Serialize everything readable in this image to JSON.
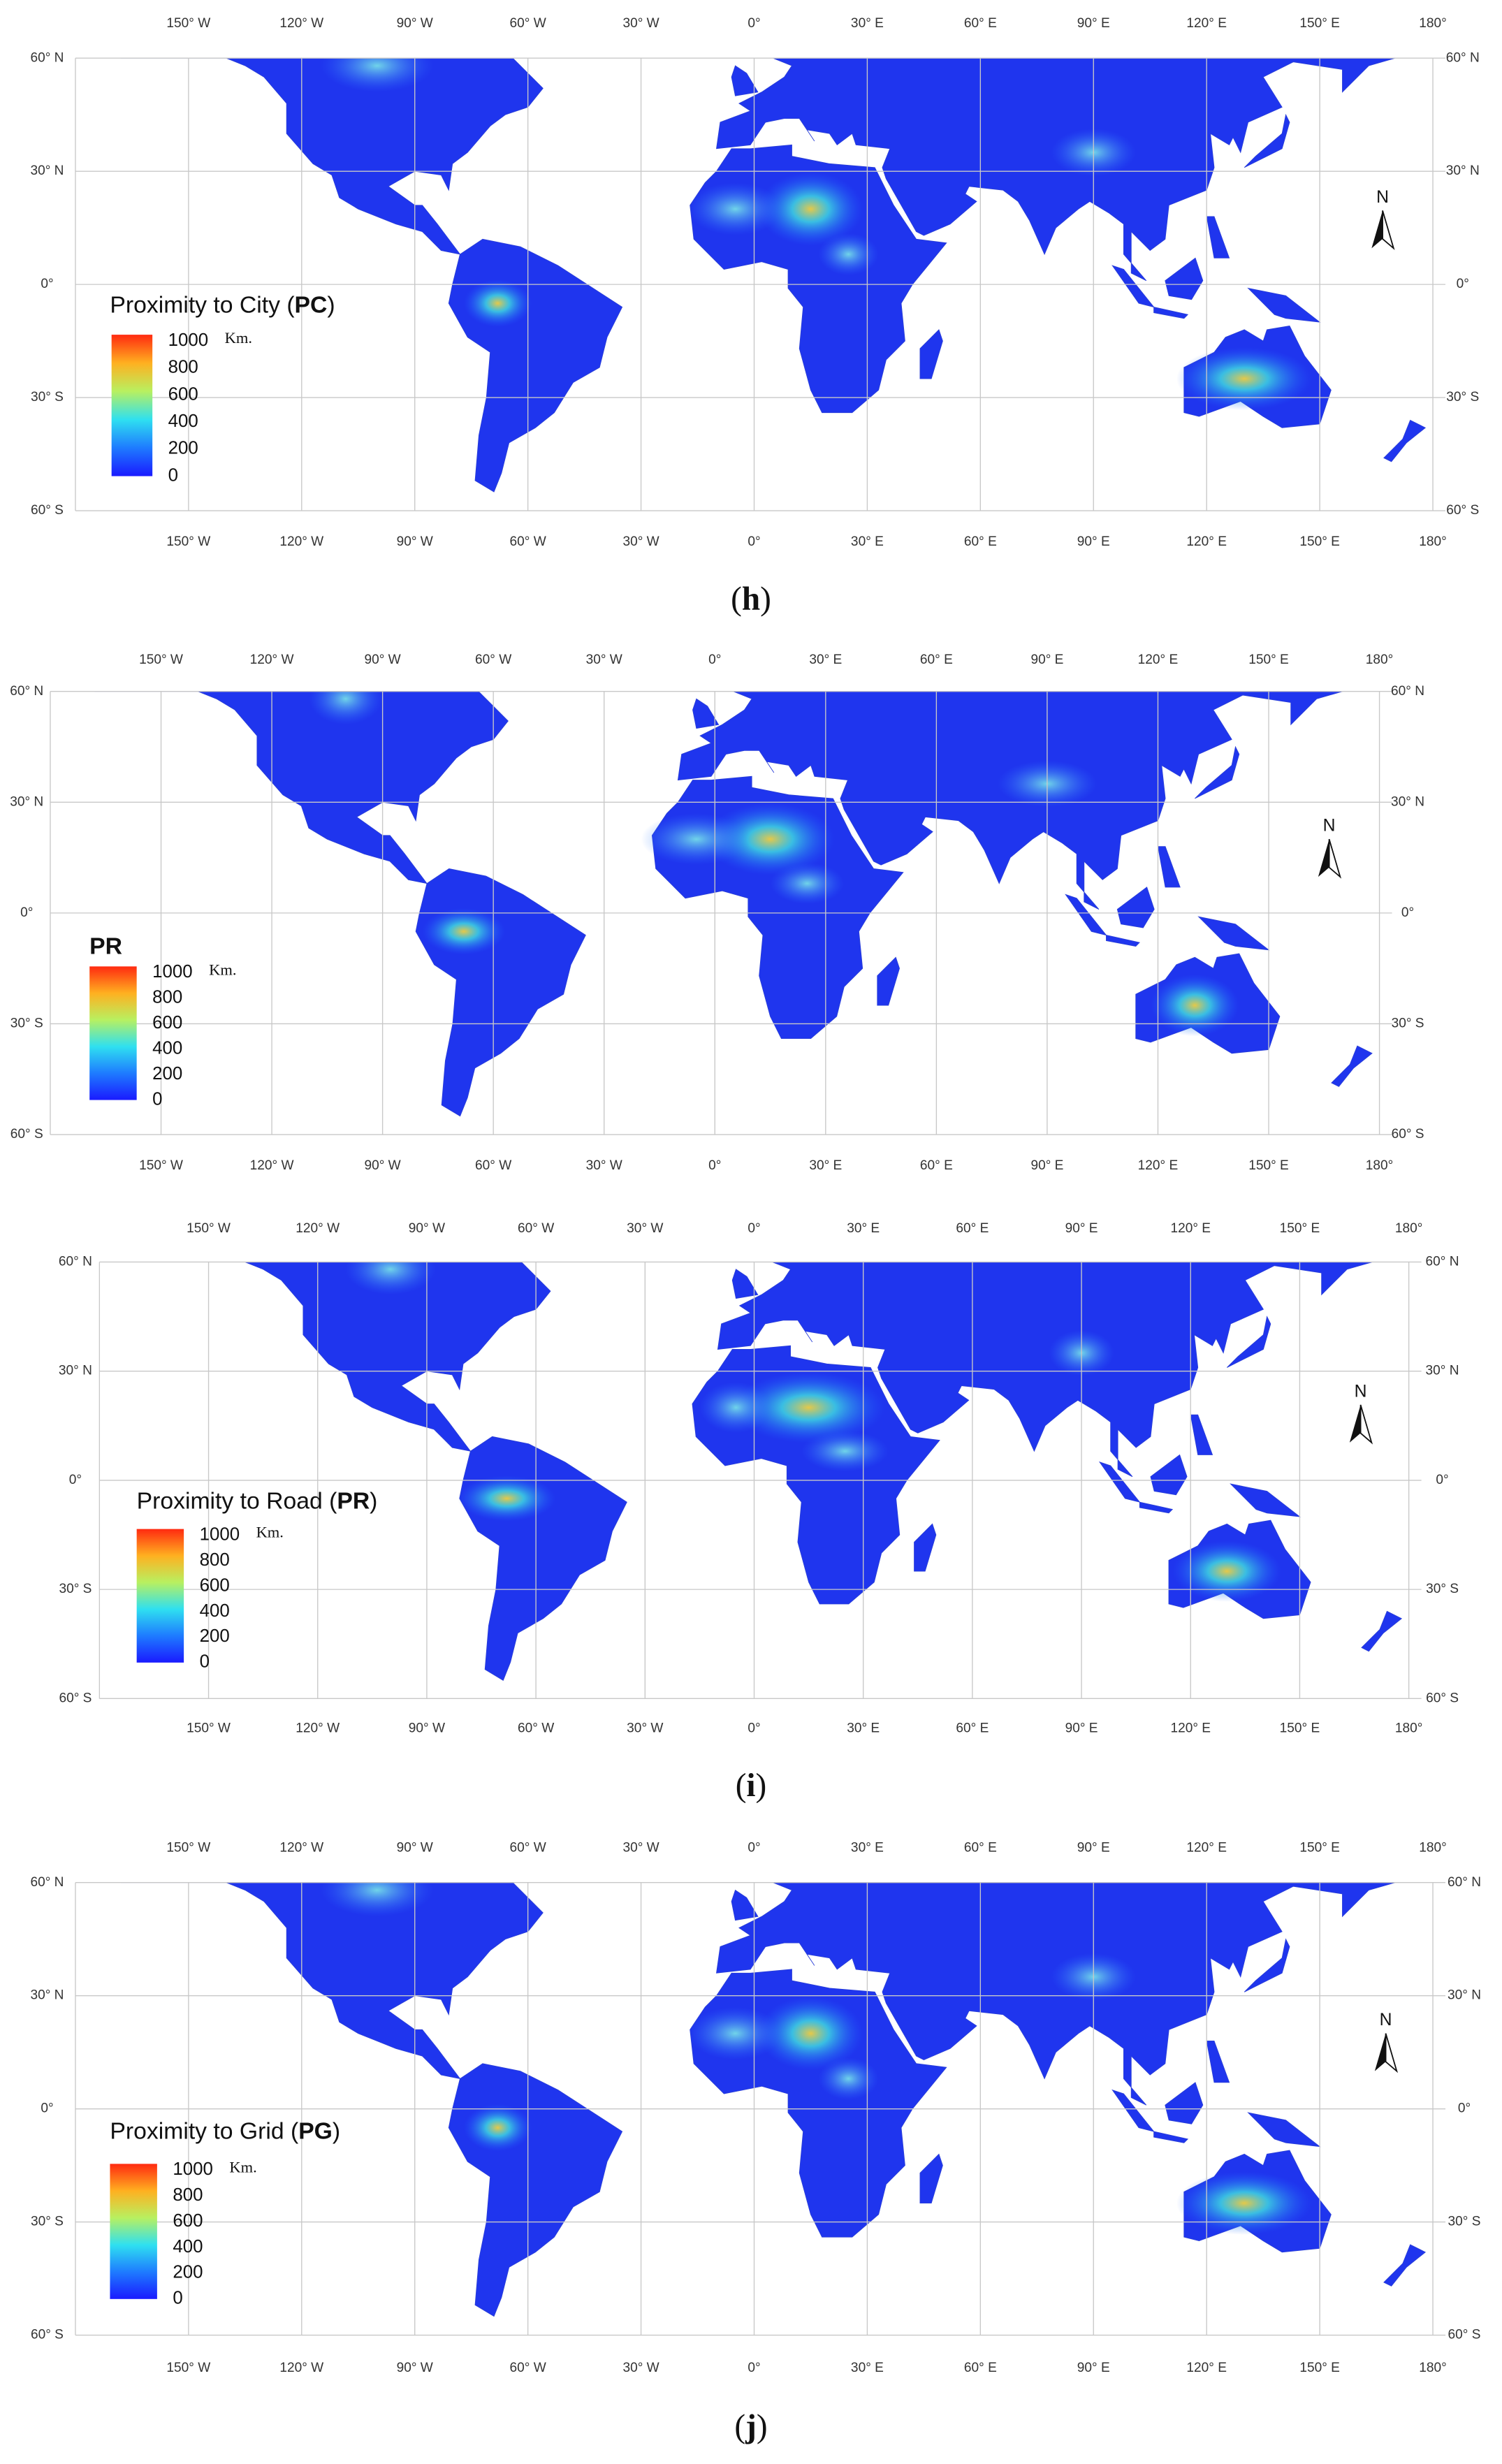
{
  "longitudes": [
    "150° W",
    "120° W",
    "90° W",
    "60° W",
    "30° W",
    "0°",
    "30° E",
    "60° E",
    "90° E",
    "120° E",
    "150° E",
    "180°"
  ],
  "latitudes": [
    "60° N",
    "30° N",
    "0°",
    "30° S",
    "60° S"
  ],
  "north": "N",
  "legend_ticks": [
    1000,
    800,
    600,
    400,
    200,
    0
  ],
  "legend_unit": "Km.",
  "panels": [
    {
      "legend_title": {
        "prefix": "Proximity to City (",
        "abbr": "PC",
        "suffix": ")"
      },
      "caption": {
        "open": "(",
        "letter": "h",
        "close": ")"
      }
    },
    {
      "legend_title": {
        "abbr": "PR"
      }
    },
    {
      "legend_title": {
        "prefix": "Proximity to Road (",
        "abbr": "PR",
        "suffix": ")"
      },
      "caption": {
        "open": "(",
        "letter": "i",
        "close": ")"
      }
    },
    {
      "legend_title": {
        "prefix": "Proximity to Grid (",
        "abbr": "PG",
        "suffix": ")"
      },
      "caption": {
        "open": "(",
        "letter": "j",
        "close": ")"
      }
    }
  ]
}
